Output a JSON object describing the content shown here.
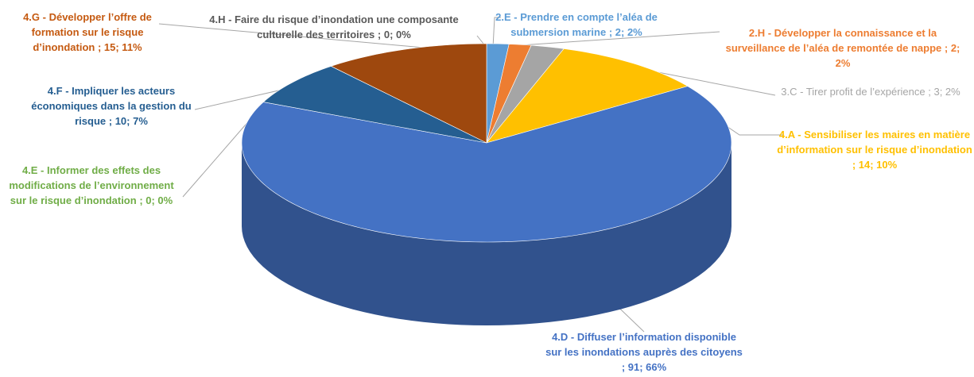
{
  "chart_data": {
    "type": "pie3d",
    "categories": [
      "2.E - Prendre en compte l’aléa de submersion marine",
      "2.H - Développer la connaissance et la surveillance de l’aléa de remontée de nappe",
      "3.C - Tirer profit de l’expérience",
      "4.A - Sensibiliser les maires en matière d’information sur le risque d’inondation",
      "4.D - Diffuser l’information disponible sur les inondations auprès des citoyens",
      "4.E - Informer des effets des modifications de l’environnement sur le risque d’inondation",
      "4.F - Impliquer les acteurs économiques dans la gestion du risque",
      "4.G - Développer l’offre de formation sur le risque d’inondation",
      "4.H - Faire du risque d’inondation une composante culturelle des territoires"
    ],
    "values": [
      2,
      2,
      3,
      14,
      91,
      0,
      10,
      15,
      0
    ],
    "value_labels": [
      "; 2; 2%",
      "; 2; 2%",
      "; 3; 2%",
      "; 14; 10%",
      "; 91; 66%",
      "; 0; 0%",
      "; 10; 7%",
      "; 15; 11%",
      "; 0; 0%"
    ],
    "colors": [
      "#5b9bd5",
      "#ed7d31",
      "#a5a5a5",
      "#ffc000",
      "#4472c4",
      "#70ad47",
      "#255e91",
      "#9e480e",
      "#636363"
    ]
  }
}
